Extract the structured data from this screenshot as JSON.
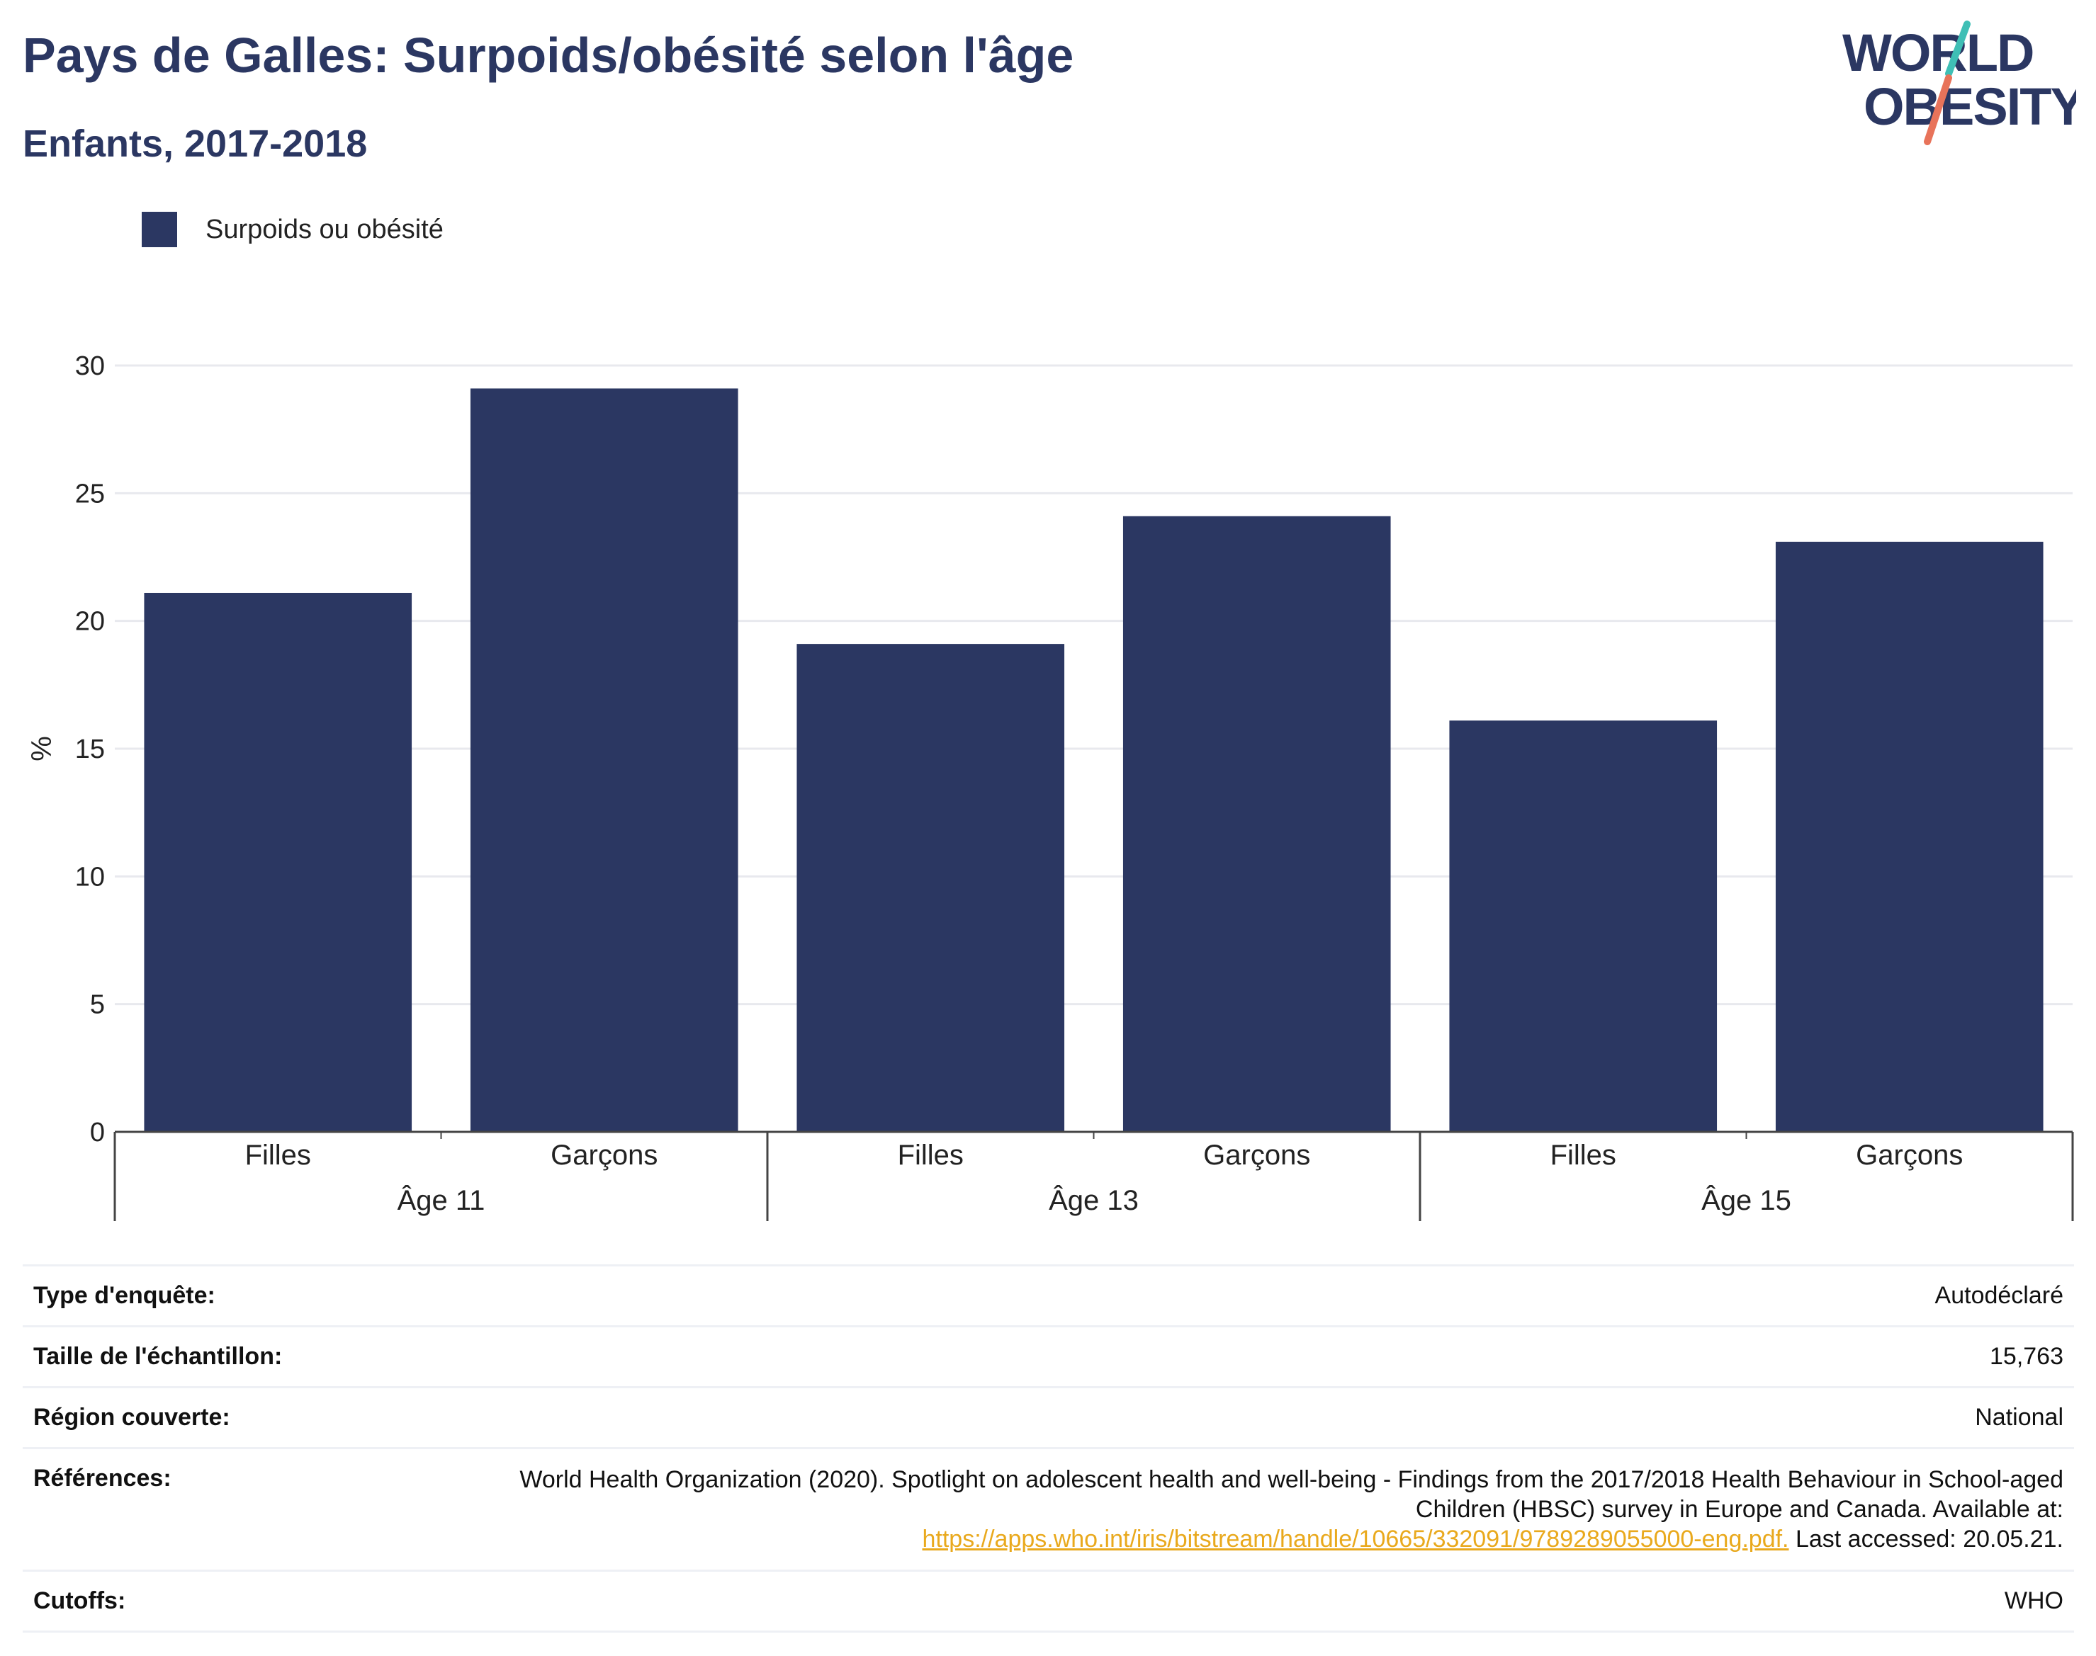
{
  "title": "Pays de Galles: Surpoids/obésité selon l'âge",
  "subtitle": "Enfants, 2017-2018",
  "logo": {
    "line1": "WORLD",
    "line2": "OBESITY",
    "accent_teal": "#3fbfb5",
    "accent_coral": "#e8735a"
  },
  "legend": [
    {
      "label": "Surpoids ou obésité",
      "color": "#2b3762"
    }
  ],
  "chart_data": {
    "type": "bar",
    "ylabel": "%",
    "ylim": [
      0,
      30
    ],
    "yticks": [
      0,
      5,
      10,
      15,
      20,
      25,
      30
    ],
    "groups": [
      {
        "label": "Âge 11",
        "categories": [
          "Filles",
          "Garçons"
        ],
        "values": [
          21.1,
          29.1
        ]
      },
      {
        "label": "Âge 13",
        "categories": [
          "Filles",
          "Garçons"
        ],
        "values": [
          19.1,
          24.1
        ]
      },
      {
        "label": "Âge 15",
        "categories": [
          "Filles",
          "Garçons"
        ],
        "values": [
          16.1,
          23.1
        ]
      }
    ],
    "series": [
      {
        "name": "Surpoids ou obésité",
        "color": "#2b3762"
      }
    ],
    "grid": true
  },
  "info": {
    "survey_type_label": "Type d'enquête:",
    "survey_type_value": "Autodéclaré",
    "sample_size_label": "Taille de l'échantillon:",
    "sample_size_value": "15,763",
    "region_label": "Région couverte:",
    "region_value": "National",
    "references_label": "Références:",
    "references_text_1": "World Health Organization (2020). Spotlight on adolescent health and well-being - Findings from the 2017/2018 Health Behaviour in School-aged Children (HBSC) survey in Europe and Canada. Available at:",
    "references_link": "https://apps.who.int/iris/bitstream/handle/10665/332091/9789289055000-eng.pdf.",
    "references_text_2": " Last accessed: 20.05.21.",
    "cutoffs_label": "Cutoffs:",
    "cutoffs_value": "WHO"
  }
}
